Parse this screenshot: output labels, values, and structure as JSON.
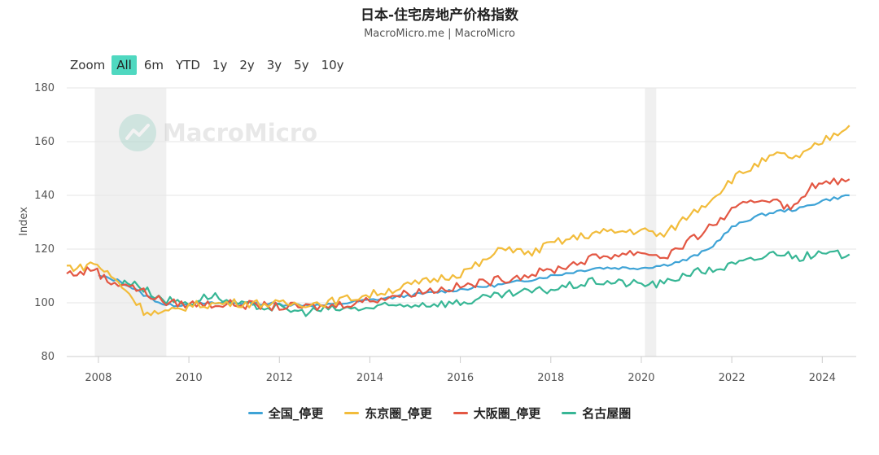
{
  "title": "日本-住宅房地产价格指数",
  "subtitle": "MacroMicro.me | MacroMicro",
  "watermark": "MacroMicro",
  "zoom": {
    "label": "Zoom",
    "options": [
      "All",
      "6m",
      "YTD",
      "1y",
      "2y",
      "3y",
      "5y",
      "10y"
    ],
    "active": "All"
  },
  "chart_data": {
    "type": "line",
    "ylabel": "Index",
    "ylim": [
      80,
      180
    ],
    "xlim": [
      2007.3,
      2024.75
    ],
    "y_ticks": [
      80,
      100,
      120,
      140,
      160,
      180
    ],
    "x_ticks": [
      2008,
      2010,
      2012,
      2014,
      2016,
      2018,
      2020,
      2022,
      2024
    ],
    "grid": true,
    "legend_position": "bottom",
    "recession_bands": [
      [
        2007.92,
        2009.5
      ],
      [
        2020.08,
        2020.33
      ]
    ],
    "series": [
      {
        "name": "全国_停更",
        "color": "#3ea3d6",
        "points": [
          [
            2008,
            110
          ],
          [
            2008.5,
            108
          ],
          [
            2009,
            103
          ],
          [
            2009.5,
            99
          ],
          [
            2010,
            99.5
          ],
          [
            2011,
            100
          ],
          [
            2012,
            99.5
          ],
          [
            2013,
            99
          ],
          [
            2014,
            101
          ],
          [
            2015,
            103
          ],
          [
            2016,
            105
          ],
          [
            2017,
            107
          ],
          [
            2018,
            110
          ],
          [
            2019,
            113
          ],
          [
            2020,
            113
          ],
          [
            2020.5,
            114
          ],
          [
            2021,
            116
          ],
          [
            2021.5,
            120
          ],
          [
            2022,
            128
          ],
          [
            2022.5,
            132
          ],
          [
            2023,
            134
          ],
          [
            2023.5,
            135
          ],
          [
            2024,
            138
          ],
          [
            2024.6,
            140
          ]
        ]
      },
      {
        "name": "东京圏_停更",
        "color": "#f2bc3b",
        "points": [
          [
            2007.3,
            113.5
          ],
          [
            2007.6,
            113
          ],
          [
            2007.9,
            115
          ],
          [
            2008.2,
            111
          ],
          [
            2008.6,
            105
          ],
          [
            2009,
            97
          ],
          [
            2009.4,
            96
          ],
          [
            2009.7,
            97
          ],
          [
            2010,
            99
          ],
          [
            2011,
            100
          ],
          [
            2012,
            99.5
          ],
          [
            2013,
            100
          ],
          [
            2014,
            103
          ],
          [
            2015,
            107
          ],
          [
            2016,
            111
          ],
          [
            2016.5,
            115
          ],
          [
            2017,
            121
          ],
          [
            2017.5,
            118
          ],
          [
            2018,
            122
          ],
          [
            2019,
            126
          ],
          [
            2020,
            127
          ],
          [
            2020.5,
            125
          ],
          [
            2021,
            132
          ],
          [
            2021.5,
            138
          ],
          [
            2022,
            146
          ],
          [
            2022.5,
            151
          ],
          [
            2023,
            155
          ],
          [
            2023.5,
            154
          ],
          [
            2024,
            160
          ],
          [
            2024.6,
            166
          ]
        ]
      },
      {
        "name": "大阪圏_停更",
        "color": "#e35743",
        "points": [
          [
            2007.3,
            111
          ],
          [
            2007.6,
            111
          ],
          [
            2007.9,
            113
          ],
          [
            2008.2,
            108
          ],
          [
            2008.6,
            107
          ],
          [
            2009,
            104
          ],
          [
            2009.5,
            100
          ],
          [
            2010,
            99.5
          ],
          [
            2011,
            99.5
          ],
          [
            2012,
            98.5
          ],
          [
            2013,
            98.5
          ],
          [
            2014,
            101
          ],
          [
            2015,
            104
          ],
          [
            2016,
            106
          ],
          [
            2017,
            109
          ],
          [
            2018,
            112
          ],
          [
            2019,
            117
          ],
          [
            2020,
            119
          ],
          [
            2020.5,
            117
          ],
          [
            2021,
            122
          ],
          [
            2021.5,
            128
          ],
          [
            2022,
            134
          ],
          [
            2022.5,
            138
          ],
          [
            2023,
            139
          ],
          [
            2023.3,
            134
          ],
          [
            2023.7,
            143
          ],
          [
            2024,
            144
          ],
          [
            2024.6,
            146
          ]
        ]
      },
      {
        "name": "名古屋圏",
        "color": "#37b695",
        "points": [
          [
            2008.5,
            107
          ],
          [
            2008.8,
            108
          ],
          [
            2009,
            105
          ],
          [
            2009.5,
            101
          ],
          [
            2010,
            100
          ],
          [
            2010.5,
            103
          ],
          [
            2011,
            99.5
          ],
          [
            2012,
            98
          ],
          [
            2012.5,
            96.5
          ],
          [
            2013,
            97.5
          ],
          [
            2014,
            98
          ],
          [
            2015,
            99.5
          ],
          [
            2016,
            100
          ],
          [
            2017,
            103
          ],
          [
            2018,
            105
          ],
          [
            2019,
            108
          ],
          [
            2020,
            107
          ],
          [
            2020.5,
            107
          ],
          [
            2021,
            111
          ],
          [
            2021.5,
            112
          ],
          [
            2022,
            114
          ],
          [
            2022.5,
            116
          ],
          [
            2023,
            119
          ],
          [
            2023.5,
            117
          ],
          [
            2024,
            118
          ],
          [
            2024.6,
            118
          ]
        ]
      }
    ]
  }
}
